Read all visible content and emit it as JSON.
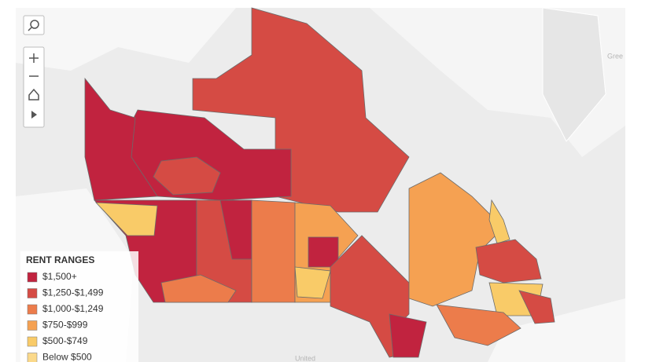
{
  "legend": {
    "title": "RENT RANGES",
    "items": [
      {
        "label": "$1,500+",
        "color": "#c1233f"
      },
      {
        "label": "$1,250-$1,499",
        "color": "#d54b44"
      },
      {
        "label": "$1,000-$1,249",
        "color": "#ec7c4b"
      },
      {
        "label": "$750-$999",
        "color": "#f5a152"
      },
      {
        "label": "$500-$749",
        "color": "#f9cb68"
      },
      {
        "label": "Below $500",
        "color": "#fbd98a"
      }
    ]
  },
  "map_labels": [
    "Gree",
    "United"
  ]
}
